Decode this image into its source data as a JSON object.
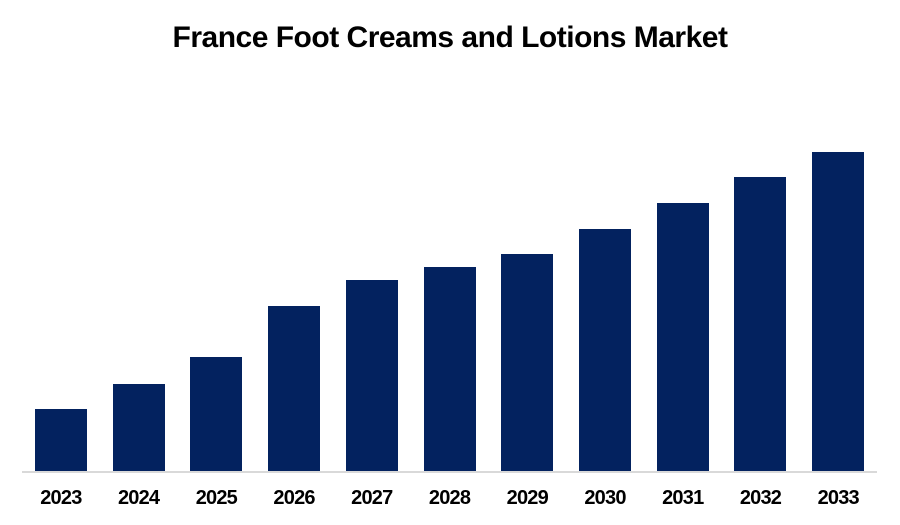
{
  "chart_data": {
    "type": "bar",
    "title": "France Foot Creams and Lotions Market",
    "categories": [
      "2023",
      "2024",
      "2025",
      "2026",
      "2027",
      "2028",
      "2029",
      "2030",
      "2031",
      "2032",
      "2033"
    ],
    "values": [
      62,
      87,
      114,
      165,
      191,
      204,
      217,
      242,
      268,
      294,
      319
    ],
    "ylim": [
      0,
      340
    ],
    "xlabel": "",
    "ylabel": "",
    "grid": false,
    "legend": false,
    "y_axis_visible": false,
    "data_labels_visible": false,
    "note": "No y-axis, gridlines or data labels are shown; values are relative bar heights estimated from pixels.",
    "bar_color": "#03225f",
    "axis_line_color": "#d9d9d9",
    "title_color": "#000000",
    "tick_label_color": "#000000",
    "background_color": "#ffffff"
  }
}
